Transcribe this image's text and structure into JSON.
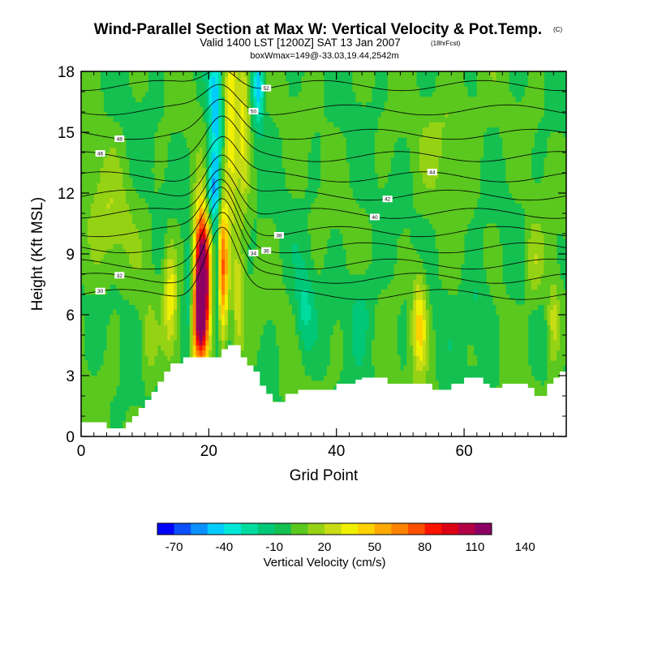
{
  "chart_data": {
    "type": "heatmap",
    "title": "Wind-Parallel Section at Max W: Vertical Velocity & Pot.Temp.",
    "title_mark": "(C)",
    "subtitle": "Valid 1400 LST [1200Z] SAT 13 Jan 2007",
    "subtitle_note": "(18hrFcst)",
    "info": "boxWmax=149@-33.03,19.44,2542m",
    "xlabel": "Grid Point",
    "ylabel": "Height (Kft MSL)",
    "xlim": [
      0,
      76
    ],
    "ylim": [
      0,
      18
    ],
    "xticks": [
      0,
      20,
      40,
      60
    ],
    "yticks": [
      0,
      3,
      6,
      9,
      12,
      15,
      18
    ],
    "colorbar": {
      "label": "Vertical Velocity (cm/s)",
      "tick_labels": [
        "-70",
        "-40",
        "-10",
        "20",
        "50",
        "80",
        "110",
        "140"
      ],
      "colors": [
        "#0000ff",
        "#0a50ff",
        "#0a90ff",
        "#00ccff",
        "#00e8d8",
        "#00dca0",
        "#00c878",
        "#14c050",
        "#5ac81e",
        "#96d214",
        "#c8dc14",
        "#f0f000",
        "#ffd200",
        "#ffaa00",
        "#ff8200",
        "#ff5000",
        "#ff1400",
        "#dc0014",
        "#b40046",
        "#8c0064"
      ]
    },
    "terrain_kft": [
      0.7,
      0.7,
      0.7,
      0.7,
      0.4,
      0.4,
      0.4,
      0.7,
      1.0,
      1.4,
      1.8,
      2.2,
      2.7,
      3.2,
      3.6,
      3.6,
      3.9,
      3.9,
      3.9,
      3.9,
      3.9,
      3.9,
      4.3,
      4.5,
      4.5,
      3.9,
      3.5,
      3.2,
      2.5,
      2.1,
      1.7,
      1.7,
      2.1,
      2.1,
      2.3,
      2.3,
      2.3,
      2.3,
      2.3,
      2.3,
      2.6,
      2.6,
      2.6,
      2.8,
      2.9,
      2.9,
      2.9,
      2.9,
      2.6,
      2.6,
      2.6,
      2.6,
      2.6,
      2.6,
      2.6,
      2.3,
      2.3,
      2.3,
      2.6,
      2.6,
      2.9,
      2.9,
      2.9,
      2.6,
      2.4,
      2.4,
      2.6,
      2.6,
      2.6,
      2.6,
      2.4,
      2.0,
      2.0,
      2.6,
      2.9,
      3.2,
      3.2
    ],
    "velocity_features": [
      {
        "x": 19.0,
        "z": 8.2,
        "w": 145,
        "sx": 0.9,
        "sz": 2.2
      },
      {
        "x": 18.5,
        "z": 5.5,
        "w": 70,
        "sx": 0.9,
        "sz": 1.6
      },
      {
        "x": 22.0,
        "z": 8.0,
        "w": 80,
        "sx": 0.7,
        "sz": 2.5
      },
      {
        "x": 21.3,
        "z": 8.0,
        "w": -50,
        "sx": 0.5,
        "sz": 2.6
      },
      {
        "x": 17.0,
        "z": 7.0,
        "w": -30,
        "sx": 0.6,
        "sz": 2.3
      },
      {
        "x": 20.5,
        "z": 12.0,
        "w": -40,
        "sx": 0.8,
        "sz": 1.2
      },
      {
        "x": 23.5,
        "z": 15.5,
        "w": 45,
        "sx": 0.8,
        "sz": 3.0
      },
      {
        "x": 21.0,
        "z": 16.0,
        "w": -45,
        "sx": 0.8,
        "sz": 3.0
      },
      {
        "x": 25.5,
        "z": 16.0,
        "w": 35,
        "sx": 0.6,
        "sz": 3.0
      },
      {
        "x": 27.8,
        "z": 17.3,
        "w": -45,
        "sx": 0.6,
        "sz": 1.3
      },
      {
        "x": 14.0,
        "z": 7.0,
        "w": 35,
        "sx": 0.7,
        "sz": 1.8
      },
      {
        "x": 24.6,
        "z": 6.5,
        "w": 30,
        "sx": 0.6,
        "sz": 2.0
      },
      {
        "x": 53.0,
        "z": 5.6,
        "w": 45,
        "sx": 0.8,
        "sz": 1.7
      },
      {
        "x": 10.5,
        "z": 4.5,
        "w": 15,
        "sx": 0.8,
        "sz": 1.5
      },
      {
        "x": 74.0,
        "z": 5.8,
        "w": 25,
        "sx": 0.7,
        "sz": 1.6
      },
      {
        "x": 35.0,
        "z": 6.2,
        "w": -22,
        "sx": 1.0,
        "sz": 1.5
      },
      {
        "x": 44.0,
        "z": 6.5,
        "w": -14,
        "sx": 1.5,
        "sz": 1.5
      },
      {
        "x": 62.0,
        "z": 6.5,
        "w": -14,
        "sx": 1.5,
        "sz": 1.5
      },
      {
        "x": 4.0,
        "z": 10.5,
        "w": 18,
        "sx": 2.5,
        "sz": 2.0
      },
      {
        "x": 58.0,
        "z": 15.0,
        "w": 14,
        "sx": 3.0,
        "sz": 2.0
      },
      {
        "x": 71.0,
        "z": 8.5,
        "w": 18,
        "sx": 1.0,
        "sz": 1.5
      }
    ],
    "theta_isentropes": [
      {
        "label": "30",
        "base": 7.0,
        "bump": 3.5
      },
      {
        "label": "32",
        "base": 7.8,
        "bump": 3.2
      },
      {
        "label": "34",
        "base": 8.5,
        "bump": 3.0
      },
      {
        "label": "36",
        "base": 9.3,
        "bump": 2.8
      },
      {
        "label": "38",
        "base": 10.1,
        "bump": 2.6
      },
      {
        "label": "40",
        "base": 11.0,
        "bump": 2.4
      },
      {
        "label": "42",
        "base": 11.9,
        "bump": 2.2
      },
      {
        "label": "44",
        "base": 12.8,
        "bump": 2.0
      },
      {
        "label": "46",
        "base": 13.8,
        "bump": 1.8
      },
      {
        "label": "48",
        "base": 14.9,
        "bump": 1.5
      },
      {
        "label": "50",
        "base": 16.1,
        "bump": 1.2
      },
      {
        "label": "52",
        "base": 17.3,
        "bump": 1.0
      }
    ]
  }
}
